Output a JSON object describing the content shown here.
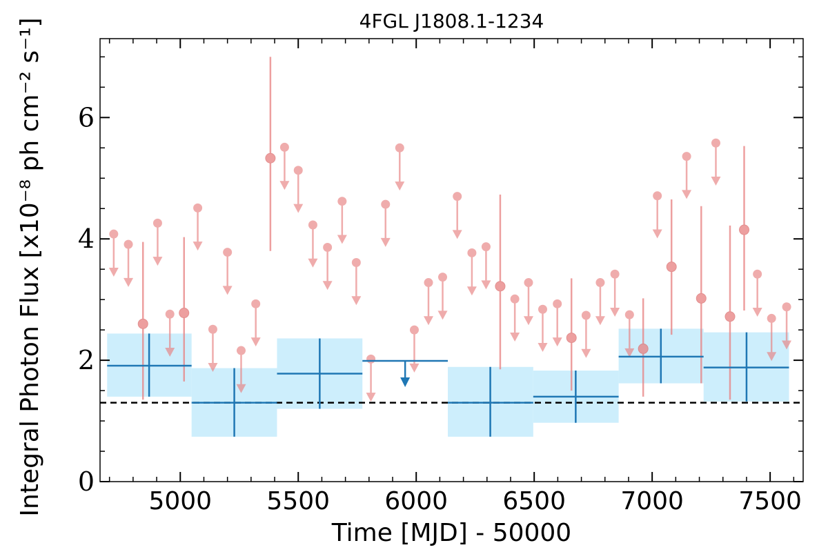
{
  "chart_data": {
    "type": "scatter",
    "title": "4FGL J1808.1-1234",
    "xlabel": "Time [MJD] - 50000",
    "ylabel": "Integral Photon Flux [x10⁻⁸ ph cm⁻² s⁻¹]",
    "xlim": [
      4660,
      7640
    ],
    "ylim": [
      0,
      7.3
    ],
    "x_ticks": [
      5000,
      5500,
      6000,
      6500,
      7000,
      7500
    ],
    "y_ticks": [
      0,
      2,
      4,
      6
    ],
    "grid": false,
    "reference_line": 1.3,
    "colors": {
      "short_points": "#e88080",
      "long_bins": "#1f77b4",
      "long_band": "#cdeefc",
      "reference": "#000000"
    },
    "short_bins": {
      "detections": [
        {
          "x": 4842,
          "y": 2.6,
          "y_low": 1.35,
          "y_high": 3.95
        },
        {
          "x": 5016,
          "y": 2.78,
          "y_low": 1.65,
          "y_high": 4.03
        },
        {
          "x": 5382,
          "y": 5.33,
          "y_low": 3.8,
          "y_high": 7.0
        },
        {
          "x": 6356,
          "y": 3.22,
          "y_low": 1.85,
          "y_high": 4.73
        },
        {
          "x": 6658,
          "y": 2.37,
          "y_low": 1.5,
          "y_high": 3.35
        },
        {
          "x": 6962,
          "y": 2.19,
          "y_low": 1.4,
          "y_high": 3.02
        },
        {
          "x": 7082,
          "y": 3.54,
          "y_low": 2.42,
          "y_high": 4.65
        },
        {
          "x": 7208,
          "y": 3.02,
          "y_low": 1.62,
          "y_high": 4.54
        },
        {
          "x": 7330,
          "y": 2.72,
          "y_low": 1.35,
          "y_high": 4.22
        },
        {
          "x": 7390,
          "y": 4.15,
          "y_low": 2.82,
          "y_high": 5.53
        }
      ],
      "upper_limits": [
        {
          "x": 4718,
          "y": 4.08
        },
        {
          "x": 4780,
          "y": 3.91
        },
        {
          "x": 4904,
          "y": 4.26
        },
        {
          "x": 4956,
          "y": 2.76
        },
        {
          "x": 5074,
          "y": 4.51
        },
        {
          "x": 5138,
          "y": 2.51
        },
        {
          "x": 5200,
          "y": 3.78
        },
        {
          "x": 5258,
          "y": 2.16
        },
        {
          "x": 5320,
          "y": 2.93
        },
        {
          "x": 5442,
          "y": 5.51
        },
        {
          "x": 5500,
          "y": 5.13
        },
        {
          "x": 5562,
          "y": 4.23
        },
        {
          "x": 5624,
          "y": 3.86
        },
        {
          "x": 5686,
          "y": 4.62
        },
        {
          "x": 5746,
          "y": 3.61
        },
        {
          "x": 5808,
          "y": 2.02
        },
        {
          "x": 5870,
          "y": 4.57
        },
        {
          "x": 5930,
          "y": 5.5
        },
        {
          "x": 5992,
          "y": 2.5
        },
        {
          "x": 6052,
          "y": 3.28
        },
        {
          "x": 6112,
          "y": 3.37
        },
        {
          "x": 6174,
          "y": 4.7
        },
        {
          "x": 6236,
          "y": 3.77
        },
        {
          "x": 6296,
          "y": 3.87
        },
        {
          "x": 6418,
          "y": 3.01
        },
        {
          "x": 6476,
          "y": 3.28
        },
        {
          "x": 6536,
          "y": 2.84
        },
        {
          "x": 6598,
          "y": 2.93
        },
        {
          "x": 6720,
          "y": 2.74
        },
        {
          "x": 6780,
          "y": 3.28
        },
        {
          "x": 6842,
          "y": 3.42
        },
        {
          "x": 6904,
          "y": 2.75
        },
        {
          "x": 7022,
          "y": 4.71
        },
        {
          "x": 7146,
          "y": 5.36
        },
        {
          "x": 7270,
          "y": 5.58
        },
        {
          "x": 7446,
          "y": 3.42
        },
        {
          "x": 7506,
          "y": 2.69
        },
        {
          "x": 7570,
          "y": 2.88
        }
      ]
    },
    "long_bins": {
      "detections": [
        {
          "x": 4868,
          "x_start": 4690,
          "x_end": 5048,
          "y": 1.91,
          "y_low": 1.4,
          "y_high": 2.44
        },
        {
          "x": 5229,
          "x_start": 5048,
          "x_end": 5410,
          "y": 1.3,
          "y_low": 0.74,
          "y_high": 1.87
        },
        {
          "x": 5591,
          "x_start": 5410,
          "x_end": 5772,
          "y": 1.78,
          "y_low": 1.2,
          "y_high": 2.36
        },
        {
          "x": 6314,
          "x_start": 6134,
          "x_end": 6496,
          "y": 1.3,
          "y_low": 0.74,
          "y_high": 1.89
        },
        {
          "x": 6676,
          "x_start": 6496,
          "x_end": 6858,
          "y": 1.4,
          "y_low": 0.97,
          "y_high": 1.83
        },
        {
          "x": 7037,
          "x_start": 6858,
          "x_end": 7218,
          "y": 2.06,
          "y_low": 1.62,
          "y_high": 2.52
        },
        {
          "x": 7400,
          "x_start": 7218,
          "x_end": 7580,
          "y": 1.88,
          "y_low": 1.32,
          "y_high": 2.46
        }
      ],
      "upper_limits": [
        {
          "x": 5953,
          "x_start": 5772,
          "x_end": 6134,
          "y": 1.99
        }
      ]
    }
  }
}
